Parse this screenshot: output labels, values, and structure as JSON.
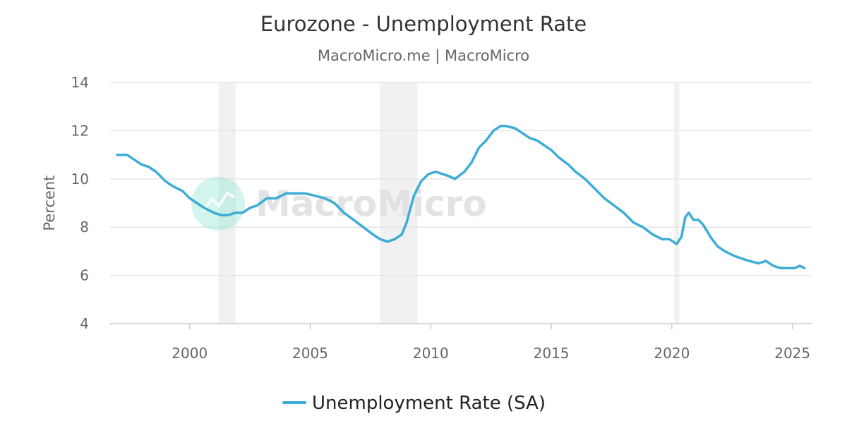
{
  "colors": {
    "series": "#3eadd6",
    "grid": "#e6e6e6",
    "recession": "#eeeeee",
    "title": "#333333",
    "subtitle": "#666666",
    "tick": "#666666",
    "watermark": "#e0e0e0",
    "watermark_logo": "#7fe3cf"
  },
  "chart_data": {
    "type": "line",
    "title": "Eurozone - Unemployment Rate",
    "subtitle": "MacroMicro.me | MacroMicro",
    "watermark": "MacroMicro",
    "xlabel": "",
    "ylabel": "Percent",
    "xlim": [
      1996.7,
      2025.8
    ],
    "ylim": [
      4,
      14
    ],
    "x_ticks": [
      2000,
      2005,
      2010,
      2015,
      2020,
      2025
    ],
    "y_ticks": [
      4,
      6,
      8,
      10,
      12,
      14
    ],
    "grid": true,
    "legend_position": "bottom-center",
    "recessions": [
      [
        2001.2,
        2001.9
      ],
      [
        2007.9,
        2009.45
      ],
      [
        2020.1,
        2020.3
      ]
    ],
    "series": [
      {
        "name": "Unemployment Rate (SA)",
        "x": [
          1997.0,
          1997.4,
          1997.7,
          1998.0,
          1998.3,
          1998.6,
          1999.0,
          1999.3,
          1999.7,
          2000.0,
          2000.3,
          2000.6,
          2001.0,
          2001.3,
          2001.6,
          2001.9,
          2002.2,
          2002.5,
          2002.8,
          2003.2,
          2003.6,
          2004.0,
          2004.4,
          2004.8,
          2005.2,
          2005.6,
          2006.0,
          2006.4,
          2006.8,
          2007.2,
          2007.6,
          2007.9,
          2008.2,
          2008.5,
          2008.8,
          2009.0,
          2009.3,
          2009.6,
          2009.9,
          2010.2,
          2010.5,
          2010.8,
          2011.0,
          2011.4,
          2011.7,
          2012.0,
          2012.3,
          2012.6,
          2012.9,
          2013.1,
          2013.5,
          2013.8,
          2014.1,
          2014.4,
          2014.7,
          2015.0,
          2015.3,
          2015.7,
          2016.0,
          2016.4,
          2016.8,
          2017.2,
          2017.6,
          2018.0,
          2018.4,
          2018.8,
          2019.2,
          2019.6,
          2019.9,
          2020.2,
          2020.4,
          2020.55,
          2020.7,
          2020.9,
          2021.1,
          2021.3,
          2021.6,
          2021.9,
          2022.2,
          2022.6,
          2022.9,
          2023.2,
          2023.6,
          2023.9,
          2024.2,
          2024.5,
          2024.8,
          2025.1,
          2025.3,
          2025.5
        ],
        "values": [
          11.0,
          11.0,
          10.8,
          10.6,
          10.5,
          10.3,
          9.9,
          9.7,
          9.5,
          9.2,
          9.0,
          8.8,
          8.6,
          8.5,
          8.5,
          8.6,
          8.6,
          8.8,
          8.9,
          9.2,
          9.2,
          9.4,
          9.4,
          9.4,
          9.3,
          9.2,
          9.0,
          8.6,
          8.3,
          8.0,
          7.7,
          7.5,
          7.4,
          7.5,
          7.7,
          8.2,
          9.3,
          9.9,
          10.2,
          10.3,
          10.2,
          10.1,
          10.0,
          10.3,
          10.7,
          11.3,
          11.6,
          12.0,
          12.2,
          12.2,
          12.1,
          11.9,
          11.7,
          11.6,
          11.4,
          11.2,
          10.9,
          10.6,
          10.3,
          10.0,
          9.6,
          9.2,
          8.9,
          8.6,
          8.2,
          8.0,
          7.7,
          7.5,
          7.5,
          7.3,
          7.6,
          8.4,
          8.6,
          8.3,
          8.3,
          8.1,
          7.6,
          7.2,
          7.0,
          6.8,
          6.7,
          6.6,
          6.5,
          6.6,
          6.4,
          6.3,
          6.3,
          6.3,
          6.4,
          6.3
        ]
      }
    ]
  }
}
